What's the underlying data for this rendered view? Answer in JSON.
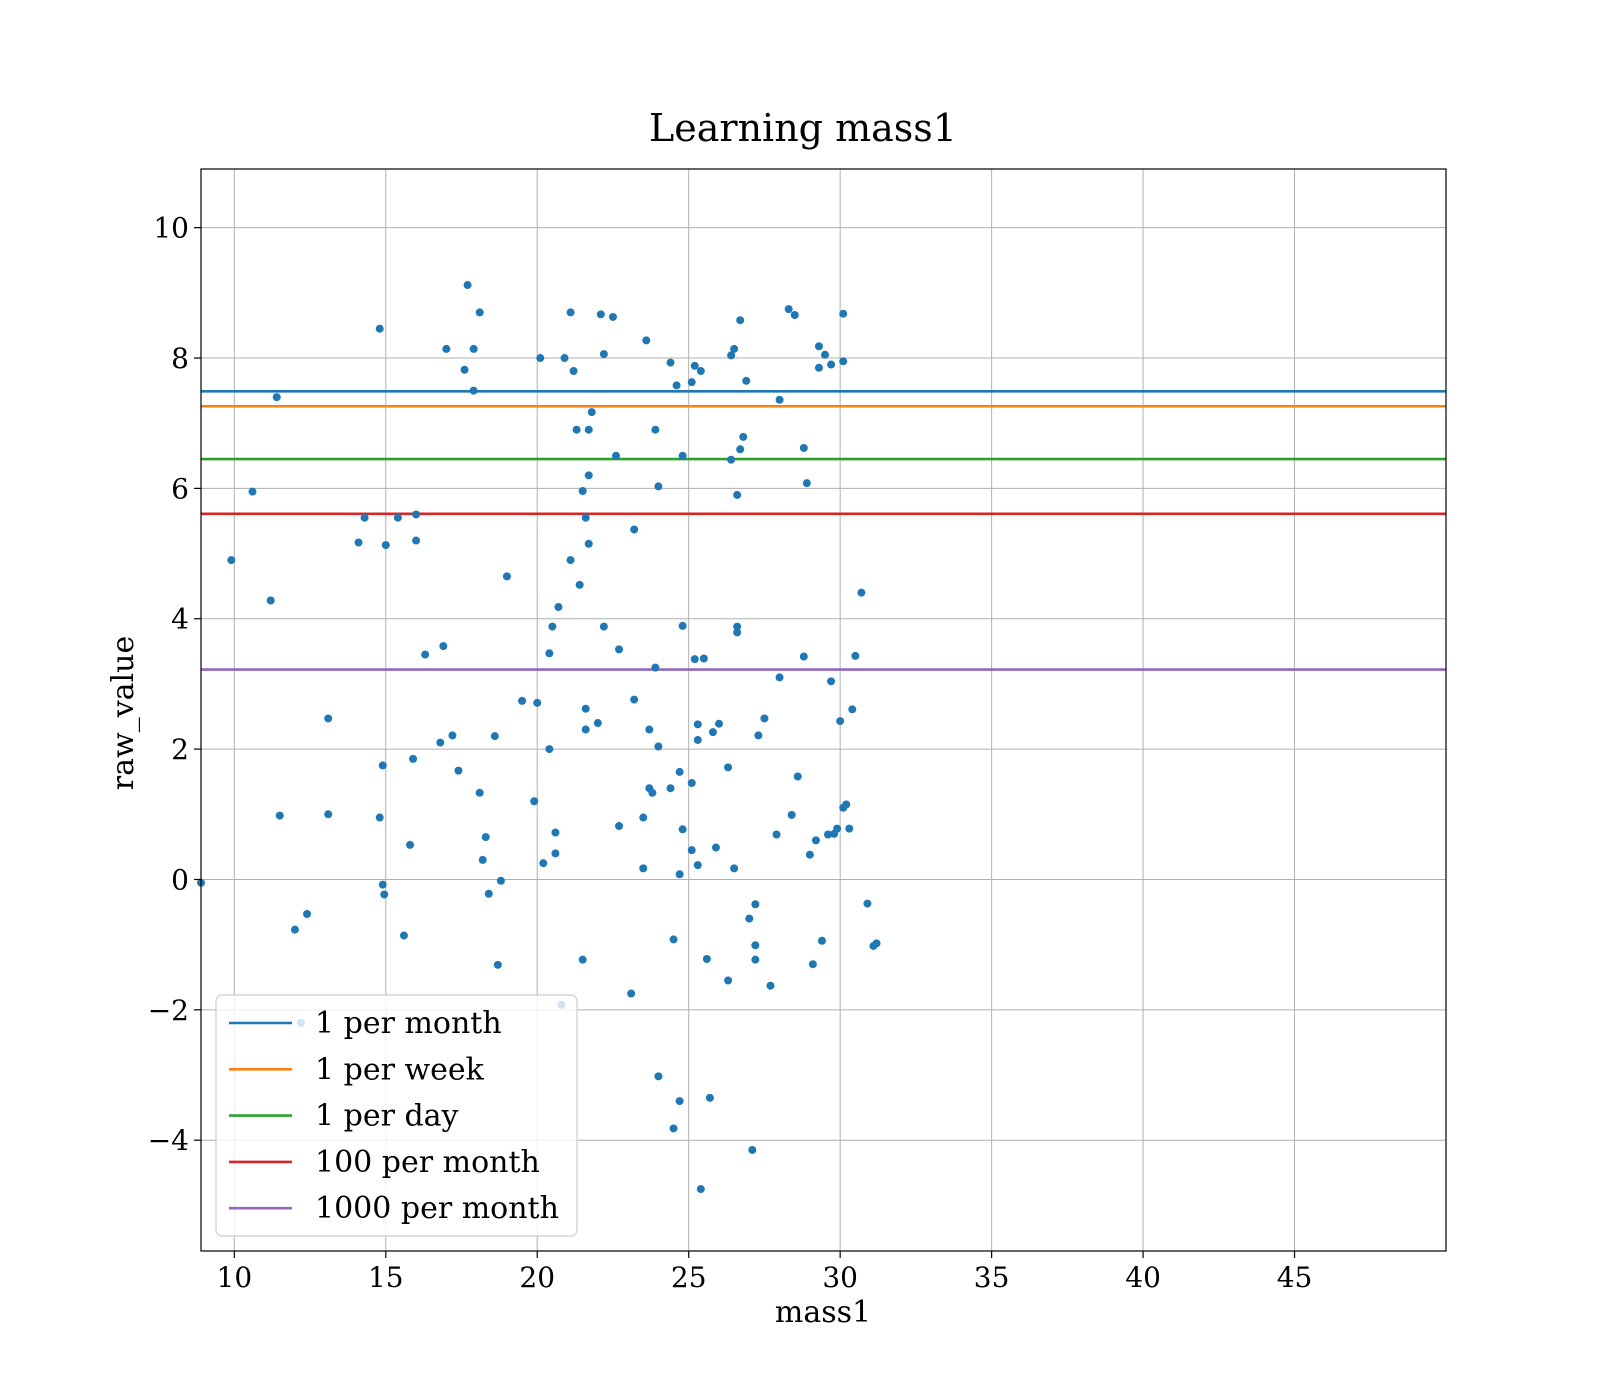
{
  "chart_data": {
    "type": "scatter",
    "title": "Learning mass1",
    "xlabel": "mass1",
    "ylabel": "raw_value",
    "xlim": [
      8.9,
      50
    ],
    "ylim": [
      -5.7,
      10.9
    ],
    "xticks": [
      10,
      15,
      20,
      25,
      30,
      35,
      40,
      45
    ],
    "yticks": [
      -4,
      -2,
      0,
      2,
      4,
      6,
      8,
      10
    ],
    "xtick_labels": [
      "10",
      "15",
      "20",
      "25",
      "30",
      "35",
      "40",
      "45"
    ],
    "ytick_labels": [
      "−4",
      "−2",
      "0",
      "2",
      "4",
      "6",
      "8",
      "10"
    ],
    "grid": true,
    "legend_position": "lower-left",
    "point_color": "#1f77b4",
    "thresholds": [
      {
        "name": "1 per month",
        "y": 7.49,
        "color": "#1f77b4"
      },
      {
        "name": "1 per week",
        "y": 7.26,
        "color": "#ff7f0e"
      },
      {
        "name": "1 per day",
        "y": 6.45,
        "color": "#2ca02c"
      },
      {
        "name": "100 per month",
        "y": 5.61,
        "color": "#d62728"
      },
      {
        "name": "1000 per month",
        "y": 3.22,
        "color": "#9467bd"
      }
    ],
    "points": [
      [
        8.9,
        -0.05
      ],
      [
        9.9,
        4.9
      ],
      [
        10.6,
        5.95
      ],
      [
        11.2,
        4.28
      ],
      [
        11.4,
        7.4
      ],
      [
        11.5,
        0.98
      ],
      [
        12,
        -0.77
      ],
      [
        12.2,
        -2.2
      ],
      [
        12.4,
        -0.53
      ],
      [
        13.1,
        2.47
      ],
      [
        13.1,
        1.0
      ],
      [
        14.1,
        5.17
      ],
      [
        14.3,
        5.55
      ],
      [
        14.8,
        8.45
      ],
      [
        14.8,
        0.95
      ],
      [
        14.9,
        1.75
      ],
      [
        14.9,
        -0.08
      ],
      [
        14.95,
        -0.23
      ],
      [
        15,
        5.13
      ],
      [
        15.4,
        5.55
      ],
      [
        15.6,
        -0.86
      ],
      [
        15.8,
        0.53
      ],
      [
        15.9,
        1.85
      ],
      [
        16,
        5.6
      ],
      [
        16,
        5.2
      ],
      [
        16.3,
        3.45
      ],
      [
        16.8,
        2.1
      ],
      [
        16.9,
        3.58
      ],
      [
        17,
        8.14
      ],
      [
        17.2,
        2.21
      ],
      [
        17.4,
        1.67
      ],
      [
        17.6,
        7.82
      ],
      [
        17.7,
        9.12
      ],
      [
        17.9,
        7.5
      ],
      [
        17.9,
        8.14
      ],
      [
        18.1,
        8.7
      ],
      [
        18.1,
        1.33
      ],
      [
        18.2,
        0.3
      ],
      [
        18.3,
        0.65
      ],
      [
        18.4,
        -0.22
      ],
      [
        18.6,
        2.2
      ],
      [
        18.7,
        -1.31
      ],
      [
        18.8,
        -0.02
      ],
      [
        19,
        4.65
      ],
      [
        19.5,
        2.74
      ],
      [
        19.9,
        1.2
      ],
      [
        20.0,
        2.71
      ],
      [
        20.1,
        8.0
      ],
      [
        20.2,
        0.25
      ],
      [
        20.4,
        3.47
      ],
      [
        20.4,
        2.0
      ],
      [
        20.5,
        3.88
      ],
      [
        20.6,
        0.72
      ],
      [
        20.6,
        0.4
      ],
      [
        20.7,
        4.18
      ],
      [
        20.8,
        -1.92
      ],
      [
        20.9,
        8.0
      ],
      [
        21.1,
        4.9
      ],
      [
        21.1,
        8.7
      ],
      [
        21.2,
        7.8
      ],
      [
        21.3,
        6.9
      ],
      [
        21.4,
        4.52
      ],
      [
        21.5,
        5.96
      ],
      [
        21.5,
        -1.23
      ],
      [
        21.6,
        2.3
      ],
      [
        21.6,
        2.62
      ],
      [
        21.6,
        5.55
      ],
      [
        21.7,
        6.9
      ],
      [
        21.7,
        6.2
      ],
      [
        21.7,
        5.15
      ],
      [
        21.8,
        7.17
      ],
      [
        22,
        2.4
      ],
      [
        22.1,
        8.67
      ],
      [
        22.2,
        8.06
      ],
      [
        22.2,
        3.88
      ],
      [
        22.5,
        8.63
      ],
      [
        22.6,
        6.5
      ],
      [
        22.7,
        3.53
      ],
      [
        22.7,
        0.82
      ],
      [
        23.1,
        -1.75
      ],
      [
        23.2,
        2.76
      ],
      [
        23.2,
        5.37
      ],
      [
        23.5,
        0.17
      ],
      [
        23.5,
        0.95
      ],
      [
        23.6,
        8.27
      ],
      [
        23.7,
        2.3
      ],
      [
        23.7,
        1.4
      ],
      [
        23.8,
        1.33
      ],
      [
        23.9,
        6.9
      ],
      [
        23.9,
        3.25
      ],
      [
        24,
        6.03
      ],
      [
        24,
        -3.02
      ],
      [
        24.0,
        2.04
      ],
      [
        24.4,
        1.4
      ],
      [
        24.4,
        7.93
      ],
      [
        24.5,
        -0.92
      ],
      [
        24.5,
        -3.82
      ],
      [
        24.6,
        7.58
      ],
      [
        24.7,
        -3.4
      ],
      [
        24.7,
        1.65
      ],
      [
        24.7,
        0.08
      ],
      [
        24.8,
        6.5
      ],
      [
        24.8,
        3.89
      ],
      [
        24.8,
        0.77
      ],
      [
        25.1,
        7.63
      ],
      [
        25.1,
        1.48
      ],
      [
        25.1,
        0.45
      ],
      [
        25.2,
        7.88
      ],
      [
        25.2,
        3.38
      ],
      [
        25.3,
        2.38
      ],
      [
        25.3,
        2.14
      ],
      [
        25.3,
        0.22
      ],
      [
        25.4,
        7.8
      ],
      [
        25.4,
        -4.75
      ],
      [
        25.5,
        3.39
      ],
      [
        25.6,
        -1.22
      ],
      [
        25.7,
        -3.35
      ],
      [
        25.8,
        2.26
      ],
      [
        25.9,
        0.49
      ],
      [
        26,
        2.39
      ],
      [
        26.3,
        1.72
      ],
      [
        26.3,
        -1.55
      ],
      [
        26.4,
        8.04
      ],
      [
        26.4,
        6.44
      ],
      [
        26.5,
        8.14
      ],
      [
        26.5,
        0.17
      ],
      [
        26.6,
        3.79
      ],
      [
        26.6,
        3.88
      ],
      [
        26.6,
        5.9
      ],
      [
        26.7,
        6.6
      ],
      [
        26.7,
        8.58
      ],
      [
        26.8,
        6.79
      ],
      [
        26.9,
        7.65
      ],
      [
        27,
        -0.6
      ],
      [
        27.1,
        -4.15
      ],
      [
        27.2,
        -1.01
      ],
      [
        27.2,
        -1.23
      ],
      [
        27.2,
        -0.38
      ],
      [
        27.3,
        2.21
      ],
      [
        27.5,
        2.47
      ],
      [
        27.7,
        -1.63
      ],
      [
        27.9,
        0.69
      ],
      [
        28,
        3.1
      ],
      [
        28,
        7.36
      ],
      [
        28.3,
        8.75
      ],
      [
        28.4,
        0.99
      ],
      [
        28.5,
        8.66
      ],
      [
        28.6,
        1.58
      ],
      [
        28.8,
        3.42
      ],
      [
        28.8,
        6.62
      ],
      [
        28.9,
        6.08
      ],
      [
        29,
        0.38
      ],
      [
        29.1,
        -1.3
      ],
      [
        29.2,
        0.6
      ],
      [
        29.3,
        8.18
      ],
      [
        29.3,
        7.85
      ],
      [
        29.4,
        -0.94
      ],
      [
        29.5,
        8.05
      ],
      [
        29.6,
        0.69
      ],
      [
        29.7,
        7.9
      ],
      [
        29.7,
        3.04
      ],
      [
        29.8,
        0.7
      ],
      [
        29.9,
        0.78
      ],
      [
        30.0,
        2.43
      ],
      [
        30.1,
        7.95
      ],
      [
        30.1,
        8.68
      ],
      [
        30.1,
        1.1
      ],
      [
        30.2,
        1.15
      ],
      [
        30.3,
        0.78
      ],
      [
        30.4,
        2.61
      ],
      [
        30.5,
        3.43
      ],
      [
        30.7,
        4.4
      ],
      [
        30.9,
        -0.37
      ],
      [
        31.1,
        -1.02
      ],
      [
        31.2,
        -0.98
      ]
    ]
  }
}
